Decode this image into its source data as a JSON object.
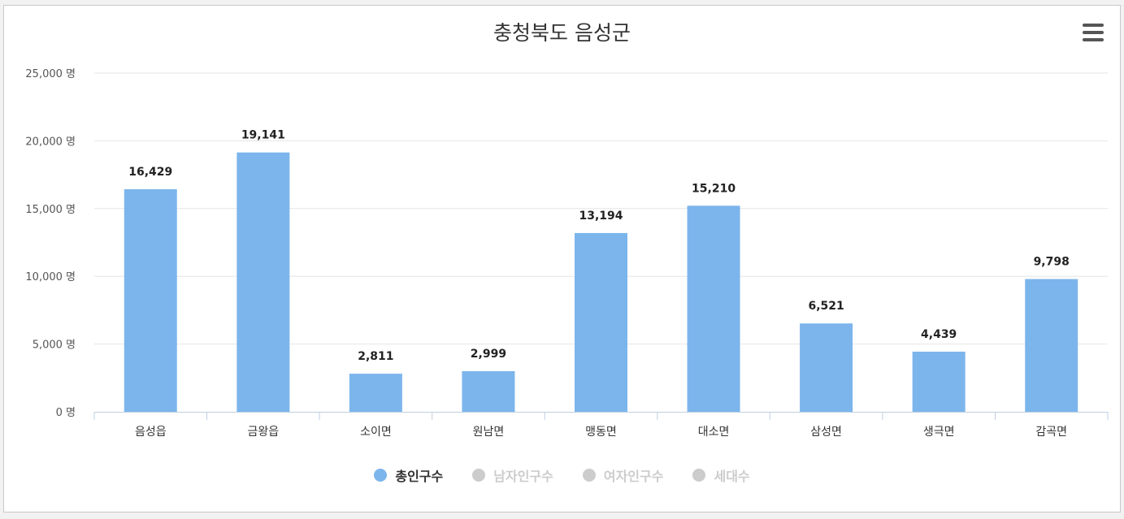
{
  "chart_data": {
    "type": "bar",
    "title": "충청북도 음성군",
    "categories": [
      "음성읍",
      "금왕읍",
      "소이면",
      "원남면",
      "맹동면",
      "대소면",
      "삼성면",
      "생극면",
      "감곡면"
    ],
    "series": [
      {
        "name": "총인구수",
        "values": [
          16429,
          19141,
          2811,
          2999,
          13194,
          15210,
          6521,
          4439,
          9798
        ],
        "color": "#7cb5ec",
        "active": true
      },
      {
        "name": "남자인구수",
        "active": false
      },
      {
        "name": "여자인구수",
        "active": false
      },
      {
        "name": "세대수",
        "active": false
      }
    ],
    "data_labels": [
      "16,429",
      "19,141",
      "2,811",
      "2,999",
      "13,194",
      "15,210",
      "6,521",
      "4,439",
      "9,798"
    ],
    "y_ticks": [
      0,
      5000,
      10000,
      15000,
      20000,
      25000
    ],
    "y_tick_labels": [
      "0 명",
      "5,000 명",
      "10,000 명",
      "15,000 명",
      "20,000 명",
      "25,000 명"
    ],
    "ylim": [
      0,
      25000
    ],
    "grid": true,
    "legend_position": "bottom-center"
  },
  "colors": {
    "bar": "#7cb5ec",
    "legend_active_text": "#333333",
    "legend_inactive": "#cccccc"
  },
  "icons": {
    "menu": "hamburger-menu-icon"
  }
}
